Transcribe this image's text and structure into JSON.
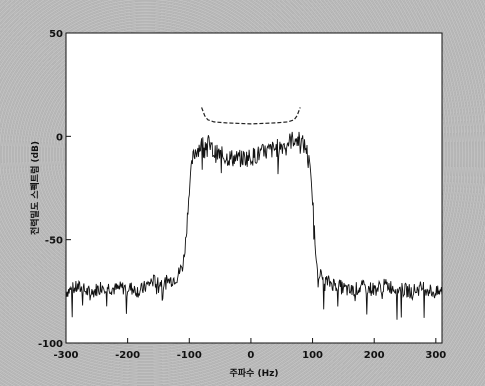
{
  "chart_data": {
    "type": "line",
    "xlabel": "주파수 (Hz)",
    "ylabel": "전력밀도 스펙트럼 (dB)",
    "xlim": [
      -300,
      310
    ],
    "ylim": [
      -100,
      50
    ],
    "x_ticks": [
      -300,
      -200,
      -100,
      0,
      100,
      200,
      300
    ],
    "y_ticks": [
      -100,
      -50,
      0,
      50
    ],
    "x_tick_labels": [
      "-300",
      "-200",
      "-100",
      "0",
      "100",
      "200",
      "300"
    ],
    "y_tick_labels": [
      "-100",
      "-50",
      "0",
      "50"
    ],
    "grid": false,
    "series": [
      {
        "style": "solid",
        "color": "#111111",
        "points": [
          [
            -300,
            -75
          ],
          [
            -280,
            -73
          ],
          [
            -260,
            -76
          ],
          [
            -240,
            -72
          ],
          [
            -220,
            -74
          ],
          [
            -200,
            -73
          ],
          [
            -180,
            -75
          ],
          [
            -160,
            -70
          ],
          [
            -140,
            -71
          ],
          [
            -120,
            -68
          ],
          [
            -110,
            -62
          ],
          [
            -105,
            -48
          ],
          [
            -100,
            -25
          ],
          [
            -95,
            -12
          ],
          [
            -90,
            -7
          ],
          [
            -80,
            -4
          ],
          [
            -70,
            -3
          ],
          [
            -60,
            -8
          ],
          [
            -40,
            -10
          ],
          [
            -20,
            -11
          ],
          [
            0,
            -10
          ],
          [
            20,
            -8
          ],
          [
            40,
            -6
          ],
          [
            60,
            -3
          ],
          [
            70,
            -1
          ],
          [
            80,
            -2
          ],
          [
            90,
            -6
          ],
          [
            95,
            -14
          ],
          [
            100,
            -30
          ],
          [
            105,
            -55
          ],
          [
            110,
            -66
          ],
          [
            120,
            -70
          ],
          [
            140,
            -72
          ],
          [
            160,
            -75
          ],
          [
            180,
            -73
          ],
          [
            200,
            -74
          ],
          [
            220,
            -72
          ],
          [
            240,
            -74
          ],
          [
            260,
            -75
          ],
          [
            280,
            -73
          ],
          [
            300,
            -76
          ],
          [
            310,
            -75
          ]
        ]
      },
      {
        "style": "dashed",
        "color": "#222222",
        "points": [
          [
            -80,
            14
          ],
          [
            -75,
            10
          ],
          [
            -70,
            8
          ],
          [
            -60,
            7
          ],
          [
            -40,
            6.5
          ],
          [
            0,
            6
          ],
          [
            40,
            6.5
          ],
          [
            60,
            7
          ],
          [
            70,
            8
          ],
          [
            75,
            10
          ],
          [
            80,
            14
          ]
        ]
      }
    ]
  }
}
